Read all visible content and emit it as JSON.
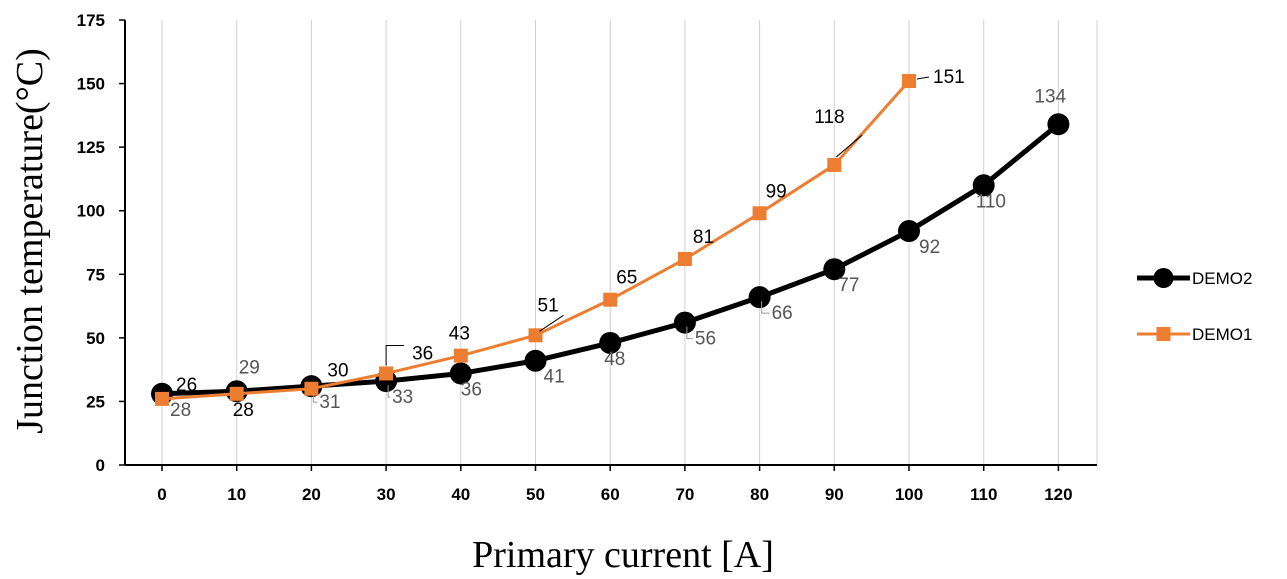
{
  "chart_data": {
    "type": "line",
    "xlabel": "Primary current  [A]",
    "ylabel": "Junction temperature(°C)",
    "xlim": [
      0,
      120
    ],
    "ylim": [
      0,
      175
    ],
    "x_ticks": [
      "0",
      "10",
      "20",
      "30",
      "40",
      "50",
      "60",
      "70",
      "80",
      "90",
      "100",
      "110",
      "120"
    ],
    "y_ticks": [
      "0",
      "25",
      "50",
      "75",
      "100",
      "125",
      "150",
      "175"
    ],
    "grid": "vertical",
    "legend_position": "right",
    "series": [
      {
        "name": "DEMO2",
        "color": "#000000",
        "marker": "circle",
        "x": [
          0,
          10,
          20,
          30,
          40,
          50,
          60,
          70,
          80,
          90,
          100,
          110,
          120
        ],
        "values": [
          28,
          29,
          31,
          33,
          36,
          41,
          48,
          56,
          66,
          77,
          92,
          110,
          134
        ],
        "labels": [
          "28",
          "29",
          "31",
          "33",
          "36",
          "41",
          "48",
          "56",
          "66",
          "77",
          "92",
          "110",
          "134"
        ]
      },
      {
        "name": "DEMO1",
        "color": "#ED7D31",
        "marker": "square",
        "x": [
          0,
          10,
          20,
          30,
          40,
          50,
          60,
          70,
          80,
          90,
          100
        ],
        "values": [
          26,
          28,
          30,
          36,
          43,
          51,
          65,
          81,
          99,
          118,
          151
        ],
        "labels": [
          "26",
          "28",
          "30",
          "36",
          "43",
          "51",
          "65",
          "81",
          "99",
          "118",
          "151"
        ]
      }
    ]
  }
}
